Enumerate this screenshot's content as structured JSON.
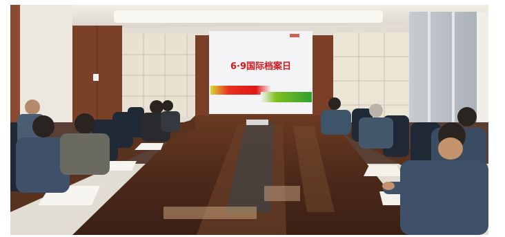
{
  "photo": {
    "screen_title": "6·9国际档案日",
    "screen_subtitle_line1": "",
    "screen_subtitle_line2": "",
    "colors": {
      "wall": "#e8e4dc",
      "wood_panel": "#6b3a25",
      "table": "#4a2a1c",
      "screen_bg": "#f4f4f6",
      "title_red": "#d6161a"
    }
  }
}
